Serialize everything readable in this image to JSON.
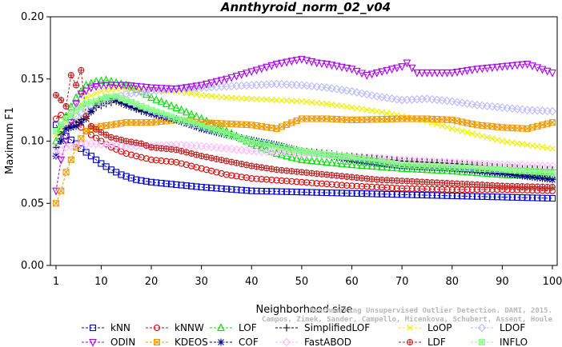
{
  "chart_data": {
    "type": "line",
    "title": "Annthyroid_norm_02_v04",
    "xlabel": "Neighborhood size",
    "ylabel": "Maximum F1",
    "xlim": [
      1,
      100
    ],
    "ylim": [
      0,
      0.2
    ],
    "xticks": [
      "1",
      "10",
      "20",
      "30",
      "40",
      "50",
      "60",
      "70",
      "80",
      "90",
      "100"
    ],
    "yticks": [
      "0.00",
      "0.05",
      "0.10",
      "0.15",
      "0.20"
    ],
    "grid": false,
    "legend_placement": "bottom",
    "series": [
      {
        "name": "kNN",
        "color": "#0000cc",
        "marker": "square",
        "points": [
          [
            1,
            0.113
          ],
          [
            2,
            0.108
          ],
          [
            3,
            0.104
          ],
          [
            4,
            0.101
          ],
          [
            5,
            0.098
          ],
          [
            6,
            0.094
          ],
          [
            8,
            0.088
          ],
          [
            10,
            0.082
          ],
          [
            12,
            0.077
          ],
          [
            14,
            0.073
          ],
          [
            17,
            0.069
          ],
          [
            20,
            0.067
          ],
          [
            25,
            0.065
          ],
          [
            30,
            0.063
          ],
          [
            40,
            0.06
          ],
          [
            50,
            0.059
          ],
          [
            60,
            0.058
          ],
          [
            70,
            0.057
          ],
          [
            80,
            0.056
          ],
          [
            90,
            0.055
          ],
          [
            100,
            0.054
          ]
        ]
      },
      {
        "name": "kNNW",
        "color": "#dd0000",
        "marker": "circle",
        "points": [
          [
            1,
            0.118
          ],
          [
            2,
            0.121
          ],
          [
            3,
            0.119
          ],
          [
            4,
            0.117
          ],
          [
            5,
            0.114
          ],
          [
            6,
            0.111
          ],
          [
            8,
            0.105
          ],
          [
            10,
            0.1
          ],
          [
            12,
            0.095
          ],
          [
            15,
            0.09
          ],
          [
            18,
            0.087
          ],
          [
            20,
            0.085
          ],
          [
            25,
            0.083
          ],
          [
            30,
            0.078
          ],
          [
            35,
            0.073
          ],
          [
            40,
            0.07
          ],
          [
            50,
            0.067
          ],
          [
            60,
            0.064
          ],
          [
            70,
            0.062
          ],
          [
            80,
            0.061
          ],
          [
            90,
            0.061
          ],
          [
            100,
            0.06
          ]
        ]
      },
      {
        "name": "LOF",
        "color": "#00dd00",
        "marker": "triangle-up",
        "points": [
          [
            1,
            0.1
          ],
          [
            3,
            0.12
          ],
          [
            5,
            0.135
          ],
          [
            7,
            0.145
          ],
          [
            9,
            0.148
          ],
          [
            11,
            0.149
          ],
          [
            13,
            0.147
          ],
          [
            15,
            0.145
          ],
          [
            18,
            0.14
          ],
          [
            20,
            0.135
          ],
          [
            23,
            0.13
          ],
          [
            26,
            0.125
          ],
          [
            30,
            0.118
          ],
          [
            35,
            0.108
          ],
          [
            40,
            0.098
          ],
          [
            45,
            0.09
          ],
          [
            50,
            0.085
          ],
          [
            60,
            0.081
          ],
          [
            70,
            0.078
          ],
          [
            80,
            0.076
          ],
          [
            90,
            0.073
          ],
          [
            100,
            0.072
          ]
        ]
      },
      {
        "name": "SimplifiedLOF",
        "color": "#000000",
        "marker": "plus",
        "points": [
          [
            1,
            0.095
          ],
          [
            2,
            0.105
          ],
          [
            3,
            0.11
          ],
          [
            5,
            0.115
          ],
          [
            7,
            0.12
          ],
          [
            9,
            0.127
          ],
          [
            11,
            0.13
          ],
          [
            13,
            0.132
          ],
          [
            15,
            0.129
          ],
          [
            18,
            0.124
          ],
          [
            20,
            0.122
          ],
          [
            25,
            0.118
          ],
          [
            30,
            0.112
          ],
          [
            35,
            0.106
          ],
          [
            40,
            0.1
          ],
          [
            45,
            0.096
          ],
          [
            50,
            0.092
          ],
          [
            55,
            0.09
          ],
          [
            60,
            0.088
          ],
          [
            70,
            0.084
          ],
          [
            80,
            0.082
          ],
          [
            90,
            0.079
          ],
          [
            100,
            0.077
          ]
        ]
      },
      {
        "name": "LoOP",
        "color": "#eeee00",
        "marker": "x",
        "points": [
          [
            1,
            0.105
          ],
          [
            3,
            0.115
          ],
          [
            5,
            0.125
          ],
          [
            7,
            0.135
          ],
          [
            10,
            0.14
          ],
          [
            13,
            0.142
          ],
          [
            16,
            0.143
          ],
          [
            20,
            0.142
          ],
          [
            25,
            0.14
          ],
          [
            30,
            0.137
          ],
          [
            35,
            0.135
          ],
          [
            40,
            0.134
          ],
          [
            45,
            0.133
          ],
          [
            50,
            0.132
          ],
          [
            55,
            0.13
          ],
          [
            60,
            0.127
          ],
          [
            65,
            0.124
          ],
          [
            70,
            0.12
          ],
          [
            75,
            0.116
          ],
          [
            80,
            0.11
          ],
          [
            85,
            0.105
          ],
          [
            90,
            0.1
          ],
          [
            95,
            0.097
          ],
          [
            100,
            0.094
          ]
        ]
      },
      {
        "name": "LDOF",
        "color": "#bbbbff",
        "marker": "diamond",
        "points": [
          [
            1,
            0.095
          ],
          [
            3,
            0.11
          ],
          [
            5,
            0.12
          ],
          [
            8,
            0.128
          ],
          [
            11,
            0.132
          ],
          [
            15,
            0.138
          ],
          [
            20,
            0.14
          ],
          [
            25,
            0.142
          ],
          [
            30,
            0.143
          ],
          [
            35,
            0.144
          ],
          [
            40,
            0.145
          ],
          [
            45,
            0.146
          ],
          [
            50,
            0.145
          ],
          [
            55,
            0.143
          ],
          [
            60,
            0.14
          ],
          [
            65,
            0.136
          ],
          [
            70,
            0.133
          ],
          [
            75,
            0.134
          ],
          [
            80,
            0.132
          ],
          [
            85,
            0.129
          ],
          [
            90,
            0.127
          ],
          [
            95,
            0.125
          ],
          [
            100,
            0.124
          ]
        ]
      },
      {
        "name": "ODIN",
        "color": "#aa00ee",
        "marker": "triangle-down",
        "points": [
          [
            1,
            0.06
          ],
          [
            2,
            0.085
          ],
          [
            3,
            0.1
          ],
          [
            4,
            0.115
          ],
          [
            5,
            0.13
          ],
          [
            6,
            0.138
          ],
          [
            8,
            0.143
          ],
          [
            10,
            0.145
          ],
          [
            15,
            0.145
          ],
          [
            20,
            0.143
          ],
          [
            25,
            0.142
          ],
          [
            30,
            0.145
          ],
          [
            35,
            0.15
          ],
          [
            40,
            0.156
          ],
          [
            45,
            0.162
          ],
          [
            50,
            0.166
          ],
          [
            53,
            0.163
          ],
          [
            55,
            0.162
          ],
          [
            60,
            0.158
          ],
          [
            63,
            0.153
          ],
          [
            65,
            0.155
          ],
          [
            70,
            0.16
          ],
          [
            71,
            0.163
          ],
          [
            73,
            0.155
          ],
          [
            80,
            0.155
          ],
          [
            85,
            0.158
          ],
          [
            90,
            0.16
          ],
          [
            95,
            0.162
          ],
          [
            100,
            0.155
          ]
        ]
      },
      {
        "name": "KDEOS",
        "color": "#ee9900",
        "marker": "square-x",
        "points": [
          [
            1,
            0.05
          ],
          [
            2,
            0.06
          ],
          [
            3,
            0.075
          ],
          [
            4,
            0.085
          ],
          [
            5,
            0.095
          ],
          [
            6,
            0.102
          ],
          [
            7,
            0.108
          ],
          [
            8,
            0.11
          ],
          [
            10,
            0.112
          ],
          [
            12,
            0.113
          ],
          [
            15,
            0.115
          ],
          [
            20,
            0.115
          ],
          [
            25,
            0.117
          ],
          [
            30,
            0.115
          ],
          [
            40,
            0.113
          ],
          [
            45,
            0.11
          ],
          [
            50,
            0.118
          ],
          [
            55,
            0.118
          ],
          [
            60,
            0.117
          ],
          [
            70,
            0.118
          ],
          [
            75,
            0.118
          ],
          [
            80,
            0.117
          ],
          [
            85,
            0.113
          ],
          [
            90,
            0.111
          ],
          [
            95,
            0.11
          ],
          [
            100,
            0.115
          ]
        ]
      },
      {
        "name": "COF",
        "color": "#000088",
        "marker": "asterisk",
        "points": [
          [
            1,
            0.088
          ],
          [
            2,
            0.1
          ],
          [
            3,
            0.11
          ],
          [
            5,
            0.112
          ],
          [
            7,
            0.118
          ],
          [
            9,
            0.13
          ],
          [
            11,
            0.135
          ],
          [
            13,
            0.133
          ],
          [
            15,
            0.129
          ],
          [
            18,
            0.125
          ],
          [
            20,
            0.122
          ],
          [
            25,
            0.117
          ],
          [
            30,
            0.11
          ],
          [
            35,
            0.105
          ],
          [
            40,
            0.101
          ],
          [
            45,
            0.097
          ],
          [
            50,
            0.092
          ],
          [
            55,
            0.089
          ],
          [
            60,
            0.085
          ],
          [
            70,
            0.08
          ],
          [
            80,
            0.078
          ],
          [
            90,
            0.074
          ],
          [
            100,
            0.069
          ]
        ]
      },
      {
        "name": "FastABOD",
        "color": "#ffbbff",
        "marker": "diamond-filled",
        "points": [
          [
            1,
            0.09
          ],
          [
            3,
            0.095
          ],
          [
            5,
            0.097
          ],
          [
            8,
            0.098
          ],
          [
            11,
            0.097
          ],
          [
            15,
            0.096
          ],
          [
            20,
            0.096
          ],
          [
            25,
            0.097
          ],
          [
            30,
            0.096
          ],
          [
            35,
            0.094
          ],
          [
            40,
            0.092
          ],
          [
            50,
            0.09
          ],
          [
            60,
            0.088
          ],
          [
            70,
            0.085
          ],
          [
            80,
            0.083
          ],
          [
            90,
            0.081
          ],
          [
            100,
            0.08
          ]
        ]
      },
      {
        "name": "LDF",
        "color": "#bb2222",
        "marker": "circle-plus",
        "points": [
          [
            1,
            0.137
          ],
          [
            2,
            0.133
          ],
          [
            3,
            0.128
          ],
          [
            4,
            0.153
          ],
          [
            5,
            0.145
          ],
          [
            6,
            0.157
          ],
          [
            7,
            0.12
          ],
          [
            8,
            0.112
          ],
          [
            10,
            0.107
          ],
          [
            12,
            0.103
          ],
          [
            15,
            0.1
          ],
          [
            18,
            0.098
          ],
          [
            20,
            0.095
          ],
          [
            25,
            0.093
          ],
          [
            30,
            0.088
          ],
          [
            35,
            0.084
          ],
          [
            40,
            0.08
          ],
          [
            45,
            0.077
          ],
          [
            50,
            0.075
          ],
          [
            55,
            0.073
          ],
          [
            60,
            0.071
          ],
          [
            65,
            0.069
          ],
          [
            70,
            0.068
          ],
          [
            75,
            0.067
          ],
          [
            80,
            0.066
          ],
          [
            90,
            0.064
          ],
          [
            100,
            0.063
          ]
        ]
      },
      {
        "name": "INFLO",
        "color": "#88ff88",
        "marker": "square-star",
        "points": [
          [
            1,
            0.108
          ],
          [
            3,
            0.118
          ],
          [
            5,
            0.125
          ],
          [
            7,
            0.13
          ],
          [
            9,
            0.132
          ],
          [
            11,
            0.135
          ],
          [
            13,
            0.136
          ],
          [
            15,
            0.133
          ],
          [
            18,
            0.128
          ],
          [
            20,
            0.125
          ],
          [
            25,
            0.118
          ],
          [
            30,
            0.112
          ],
          [
            35,
            0.106
          ],
          [
            40,
            0.1
          ],
          [
            45,
            0.096
          ],
          [
            50,
            0.092
          ],
          [
            55,
            0.089
          ],
          [
            60,
            0.087
          ],
          [
            70,
            0.081
          ],
          [
            80,
            0.079
          ],
          [
            90,
            0.077
          ],
          [
            100,
            0.075
          ]
        ]
      }
    ],
    "watermark": [
      "Benchmarking Unsupervised Outlier Detection. DAMI, 2015.",
      "Campos, Zimek, Sander, Campello, Micenkova, Schubert, Assent, Houle"
    ]
  }
}
